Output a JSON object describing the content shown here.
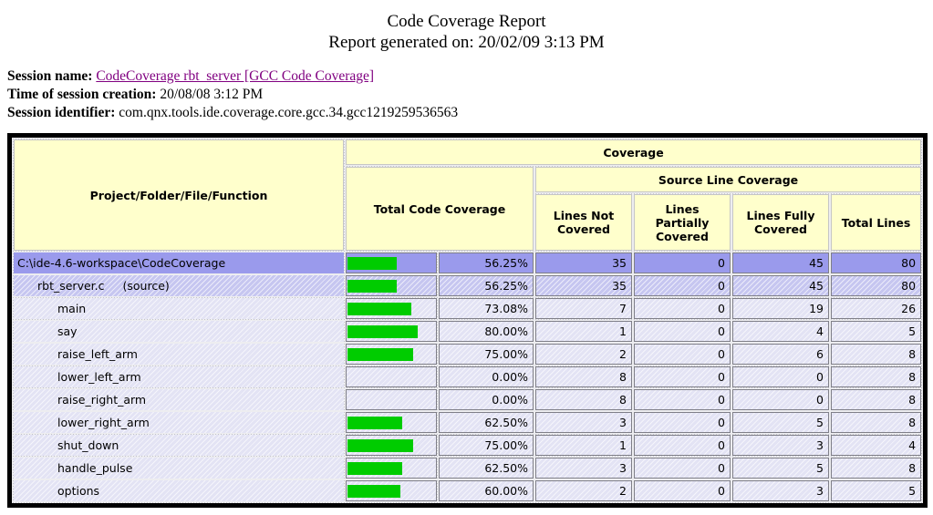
{
  "page": {
    "title": "Code Coverage Report",
    "generated_label": "Report generated on:",
    "generated_value": "20/02/09 3:13 PM"
  },
  "session": {
    "name_label": "Session name:",
    "name_link": "CodeCoverage rbt_server [GCC Code Coverage]",
    "creation_label": "Time of session creation:",
    "creation_value": "20/08/08 3:12 PM",
    "identifier_label": "Session identifier:",
    "identifier_value": "com.qnx.tools.ide.coverage.core.gcc.34.gcc1219259536563"
  },
  "colors": {
    "bar_green": "#00cc00",
    "header_bg": "#ffffcc",
    "row_project_bg": "#9a9aec",
    "row_file_bg": "#c6c6f0",
    "row_function_bg": "#e3e3f4",
    "link_purple": "#800080"
  },
  "table": {
    "headers": {
      "name": "Project/Folder/File/Function",
      "coverage": "Coverage",
      "total_code_coverage": "Total Code Coverage",
      "source_line_coverage": "Source Line Coverage",
      "lines_not_covered": "Lines Not Covered",
      "lines_partially_covered": "Lines Partially Covered",
      "lines_fully_covered": "Lines Fully Covered",
      "total_lines": "Total Lines"
    },
    "rows": [
      {
        "name": "C:\\ide-4.6-workspace\\CodeCoverage",
        "level": 0,
        "percent": "56.25%",
        "percent_value": 56.25,
        "not_covered": "35",
        "partially_covered": "0",
        "fully_covered": "45",
        "total": "80"
      },
      {
        "name": "rbt_server.c",
        "suffix": "(source)",
        "level": 1,
        "percent": "56.25%",
        "percent_value": 56.25,
        "not_covered": "35",
        "partially_covered": "0",
        "fully_covered": "45",
        "total": "80"
      },
      {
        "name": "main",
        "level": 2,
        "percent": "73.08%",
        "percent_value": 73.08,
        "not_covered": "7",
        "partially_covered": "0",
        "fully_covered": "19",
        "total": "26"
      },
      {
        "name": "say",
        "level": 2,
        "percent": "80.00%",
        "percent_value": 80.0,
        "not_covered": "1",
        "partially_covered": "0",
        "fully_covered": "4",
        "total": "5"
      },
      {
        "name": "raise_left_arm",
        "level": 2,
        "percent": "75.00%",
        "percent_value": 75.0,
        "not_covered": "2",
        "partially_covered": "0",
        "fully_covered": "6",
        "total": "8"
      },
      {
        "name": "lower_left_arm",
        "level": 2,
        "percent": "0.00%",
        "percent_value": 0.0,
        "not_covered": "8",
        "partially_covered": "0",
        "fully_covered": "0",
        "total": "8"
      },
      {
        "name": "raise_right_arm",
        "level": 2,
        "percent": "0.00%",
        "percent_value": 0.0,
        "not_covered": "8",
        "partially_covered": "0",
        "fully_covered": "0",
        "total": "8"
      },
      {
        "name": "lower_right_arm",
        "level": 2,
        "percent": "62.50%",
        "percent_value": 62.5,
        "not_covered": "3",
        "partially_covered": "0",
        "fully_covered": "5",
        "total": "8"
      },
      {
        "name": "shut_down",
        "level": 2,
        "percent": "75.00%",
        "percent_value": 75.0,
        "not_covered": "1",
        "partially_covered": "0",
        "fully_covered": "3",
        "total": "4"
      },
      {
        "name": "handle_pulse",
        "level": 2,
        "percent": "62.50%",
        "percent_value": 62.5,
        "not_covered": "3",
        "partially_covered": "0",
        "fully_covered": "5",
        "total": "8"
      },
      {
        "name": "options",
        "level": 2,
        "percent": "60.00%",
        "percent_value": 60.0,
        "not_covered": "2",
        "partially_covered": "0",
        "fully_covered": "3",
        "total": "5"
      }
    ]
  }
}
